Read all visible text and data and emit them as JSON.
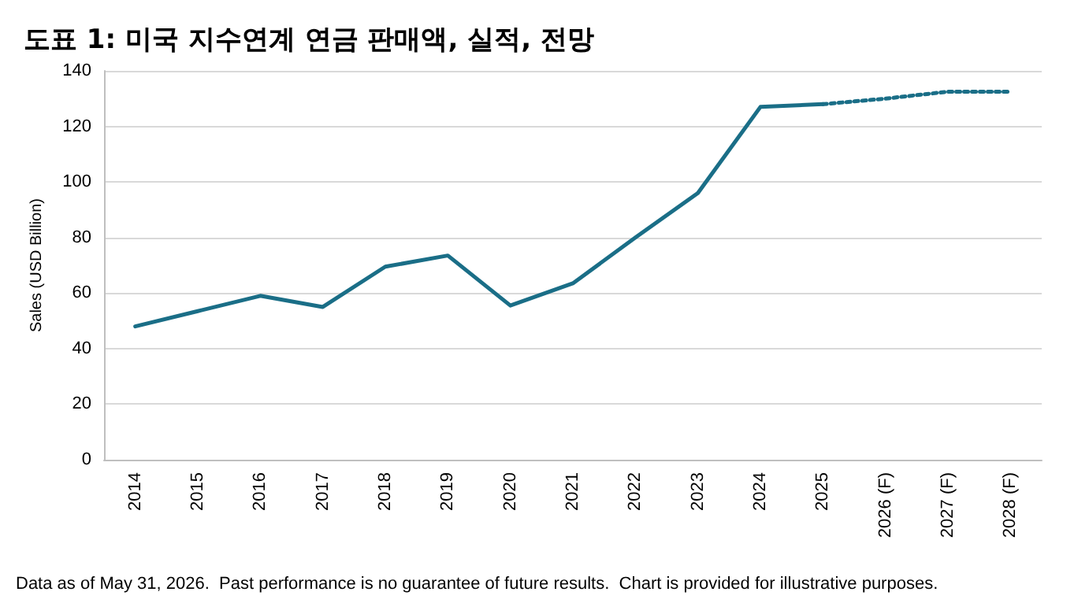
{
  "chart_data": {
    "type": "line",
    "title": "도표 1: 미국 지수연계 연금 판매액, 실적, 전망",
    "ylabel": "Sales (USD Billion)",
    "categories": [
      "2014",
      "2015",
      "2016",
      "2017",
      "2018",
      "2019",
      "2020",
      "2021",
      "2022",
      "2023",
      "2024",
      "2025",
      "2026 (F)",
      "2027 (F)",
      "2028 (F)"
    ],
    "series": [
      {
        "color": "#1a6e87",
        "line_style": "solid",
        "values": [
          48,
          53.5,
          59,
          55,
          69.5,
          73.5,
          55.5,
          63.5,
          80,
          96,
          127,
          128,
          null,
          null,
          null
        ]
      },
      {
        "color": "#1a6e87",
        "line_style": "dotted",
        "values": [
          null,
          null,
          null,
          null,
          null,
          null,
          null,
          null,
          null,
          null,
          null,
          128,
          130,
          132.5,
          132.5
        ]
      }
    ],
    "ylim": [
      0,
      140
    ],
    "yticks": [
      0,
      20,
      40,
      60,
      80,
      100,
      120,
      140
    ],
    "grid": "y",
    "marker": "none",
    "annotations": [
      "Data as of May 31, 2026.  Past performance is no guarantee of future results.  Chart is provided for illustrative purposes."
    ]
  }
}
